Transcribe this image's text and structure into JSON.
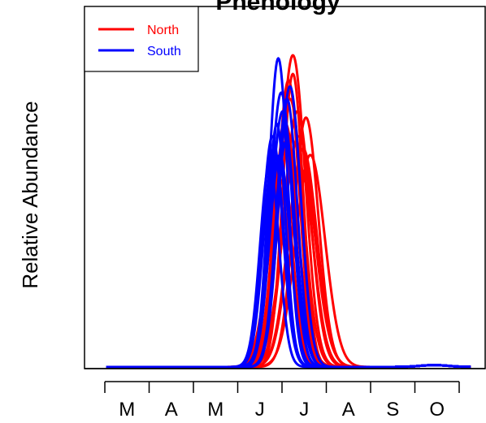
{
  "chart_data": {
    "type": "line",
    "title": "Phenology",
    "xlabel": "",
    "ylabel": "Relative Abundance",
    "month_labels": [
      "M",
      "A",
      "M",
      "J",
      "J",
      "A",
      "S",
      "O"
    ],
    "xlim": [
      60,
      335
    ],
    "ylim": [
      0,
      1.02
    ],
    "legend": {
      "placement": "top-left",
      "entries": [
        {
          "name": "North",
          "color": "#ff0000"
        },
        {
          "name": "South",
          "color": "#0000ff"
        }
      ]
    },
    "groups": [
      {
        "name": "North",
        "color": "#ff0000",
        "curves": [
          {
            "mu": 203,
            "sd": 8.5,
            "peak": 1.0
          },
          {
            "mu": 200,
            "sd": 7.5,
            "peak": 0.92
          },
          {
            "mu": 206,
            "sd": 9.0,
            "peak": 0.82
          },
          {
            "mu": 210,
            "sd": 9.5,
            "peak": 0.7
          },
          {
            "mu": 215,
            "sd": 10.0,
            "peak": 0.68
          },
          {
            "mu": 198,
            "sd": 8.0,
            "peak": 0.78
          },
          {
            "mu": 196,
            "sd": 7.0,
            "peak": 0.6
          },
          {
            "mu": 201,
            "sd": 9.0,
            "peak": 0.86
          },
          {
            "mu": 207,
            "sd": 10.5,
            "peak": 0.74
          },
          {
            "mu": 212,
            "sd": 8.5,
            "peak": 0.8
          },
          {
            "mu": 194,
            "sd": 8.0,
            "peak": 0.56
          },
          {
            "mu": 203,
            "sd": 7.0,
            "peak": 0.94
          },
          {
            "mu": 208,
            "sd": 9.0,
            "peak": 0.64
          },
          {
            "mu": 197,
            "sd": 9.5,
            "peak": 0.72
          }
        ]
      },
      {
        "name": "South",
        "color": "#0000ff",
        "curves": [
          {
            "mu": 193,
            "sd": 6.5,
            "peak": 0.99
          },
          {
            "mu": 190,
            "sd": 7.0,
            "peak": 0.7
          },
          {
            "mu": 187,
            "sd": 6.5,
            "peak": 0.65
          },
          {
            "mu": 195,
            "sd": 7.5,
            "peak": 0.88
          },
          {
            "mu": 199,
            "sd": 7.0,
            "peak": 0.86
          },
          {
            "mu": 192,
            "sd": 6.0,
            "peak": 0.78
          },
          {
            "mu": 196,
            "sd": 8.0,
            "peak": 0.82
          },
          {
            "mu": 189,
            "sd": 7.0,
            "peak": 0.74
          },
          {
            "mu": 201,
            "sd": 7.5,
            "peak": 0.9
          },
          {
            "mu": 194,
            "sd": 7.0,
            "peak": 0.68
          },
          {
            "mu": 198,
            "sd": 6.5,
            "peak": 0.72
          }
        ]
      }
    ]
  }
}
